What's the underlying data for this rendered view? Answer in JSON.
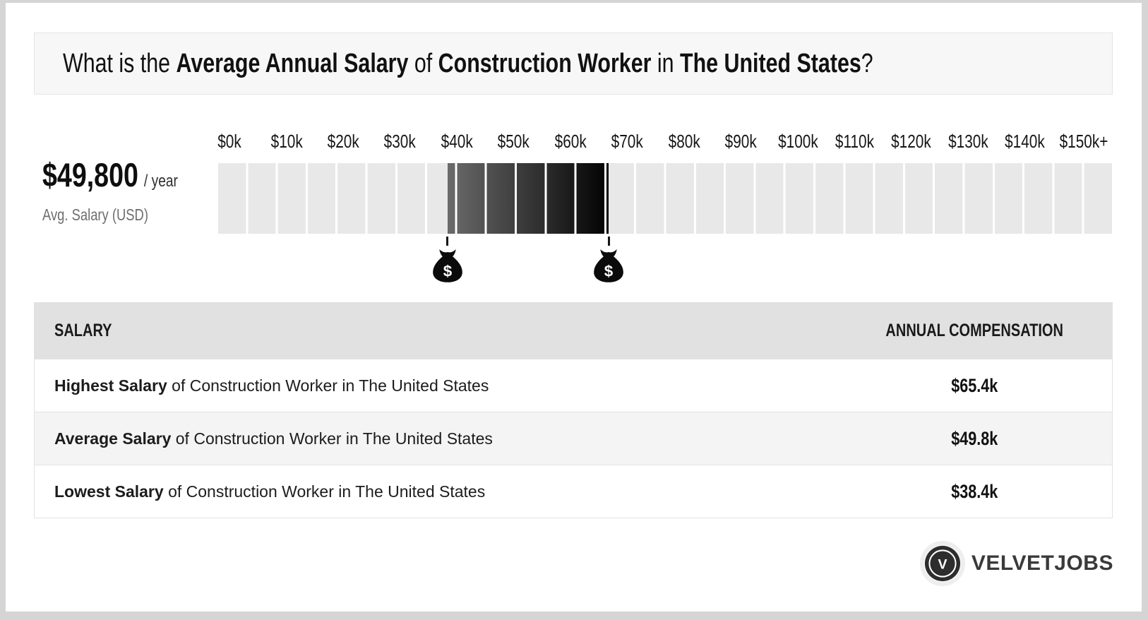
{
  "window": {
    "background": "#d5d5d5",
    "card_background": "#ffffff"
  },
  "header": {
    "title_full": "What is the Average Annual Salary of Construction Worker in The United States?",
    "title_parts": [
      {
        "text": "What is the ",
        "bold": false
      },
      {
        "text": "Average Annual Salary",
        "bold": true
      },
      {
        "text": " of ",
        "bold": false
      },
      {
        "text": "Construction Worker",
        "bold": true
      },
      {
        "text": " in ",
        "bold": false
      },
      {
        "text": "The United States",
        "bold": true
      },
      {
        "text": "?",
        "bold": false
      }
    ]
  },
  "summary": {
    "amount": "$49,800",
    "per_label": "/ year",
    "caption": "Avg. Salary (USD)"
  },
  "chart_data": {
    "type": "range-scale",
    "title": "Average Annual Salary of Construction Worker in The United States",
    "axis_tick_labels": [
      "$0k",
      "$10k",
      "$20k",
      "$30k",
      "$40k",
      "$50k",
      "$60k",
      "$70k",
      "$80k",
      "$90k",
      "$100k",
      "$110k",
      "$120k",
      "$130k",
      "$140k",
      "$150k+"
    ],
    "axis_range_thousands": [
      0,
      150
    ],
    "segment_step_thousands": 5,
    "values_thousands": {
      "lowest": 38.4,
      "average": 49.8,
      "highest": 65.4
    },
    "range_highlight": {
      "from_thousands": 38.4,
      "to_thousands": 65.4,
      "gradient": [
        "#6b6b6b",
        "#020202"
      ]
    },
    "markers": [
      {
        "name": "lowest-salary",
        "value_thousands": 38.4,
        "icon": "money-bag-icon",
        "icon_glyph": "$"
      },
      {
        "name": "highest-salary",
        "value_thousands": 65.4,
        "icon": "money-bag-icon",
        "icon_glyph": "$"
      }
    ],
    "track_color": "#e8e8e8",
    "grid": "segmented",
    "legend_position": "none"
  },
  "table": {
    "headers": [
      "SALARY",
      "ANNUAL COMPENSATION"
    ],
    "rows": [
      {
        "label_bold": "Highest Salary",
        "label_rest": " of Construction Worker in The United States",
        "value": "$65.4k"
      },
      {
        "label_bold": "Average Salary",
        "label_rest": " of Construction Worker in The United States",
        "value": "$49.8k"
      },
      {
        "label_bold": "Lowest Salary",
        "label_rest": " of Construction Worker in The United States",
        "value": "$38.4k"
      }
    ]
  },
  "brand": {
    "name": "VELVETJOBS",
    "logo_letter": "V"
  }
}
